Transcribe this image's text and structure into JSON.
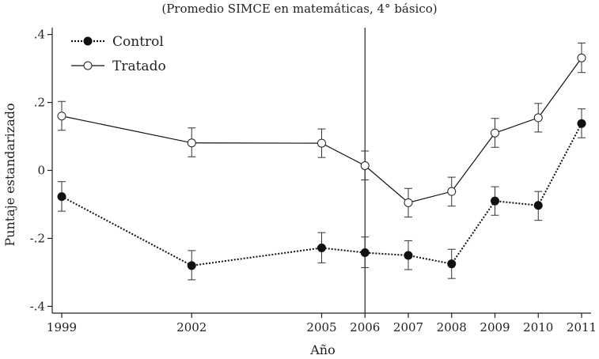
{
  "chart_data": {
    "type": "line",
    "title": "(Promedio SIMCE en matemáticas, 4° básico)",
    "xlabel": "Año",
    "ylabel": "Puntaje estandarizado",
    "x": [
      1999,
      2002,
      2005,
      2006,
      2007,
      2008,
      2009,
      2010,
      2011
    ],
    "x_tick_labels": [
      "1999",
      "2002",
      "2005",
      "2006",
      "2007",
      "2008",
      "2009",
      "2010",
      "2011"
    ],
    "y_ticks": [
      0.4,
      0.2,
      0,
      -0.2,
      -0.4
    ],
    "y_tick_labels": [
      ".4",
      ".2",
      "0",
      "-.2",
      "-.4"
    ],
    "xlim": [
      1999,
      2011
    ],
    "ylim": [
      -0.42,
      0.42
    ],
    "reference_line_x": 2006,
    "legend_position": "top-left",
    "series": [
      {
        "name": "Control",
        "style": "dotted",
        "marker": "filled-circle",
        "color": "#111111",
        "values": [
          -0.077,
          -0.28,
          -0.228,
          -0.242,
          -0.25,
          -0.275,
          -0.09,
          -0.103,
          0.138
        ],
        "err_low": [
          -0.12,
          -0.322,
          -0.272,
          -0.286,
          -0.292,
          -0.318,
          -0.132,
          -0.147,
          0.096
        ],
        "err_high": [
          -0.033,
          -0.236,
          -0.183,
          -0.196,
          -0.207,
          -0.232,
          -0.048,
          -0.062,
          0.181
        ]
      },
      {
        "name": "Tratado",
        "style": "solid",
        "marker": "open-circle",
        "color": "#111111",
        "values": [
          0.16,
          0.081,
          0.08,
          0.014,
          -0.095,
          -0.062,
          0.11,
          0.155,
          0.331
        ],
        "err_low": [
          0.118,
          0.04,
          0.038,
          -0.028,
          -0.137,
          -0.105,
          0.068,
          0.113,
          0.288
        ],
        "err_high": [
          0.203,
          0.125,
          0.122,
          0.057,
          -0.053,
          -0.02,
          0.153,
          0.197,
          0.375
        ]
      }
    ]
  }
}
